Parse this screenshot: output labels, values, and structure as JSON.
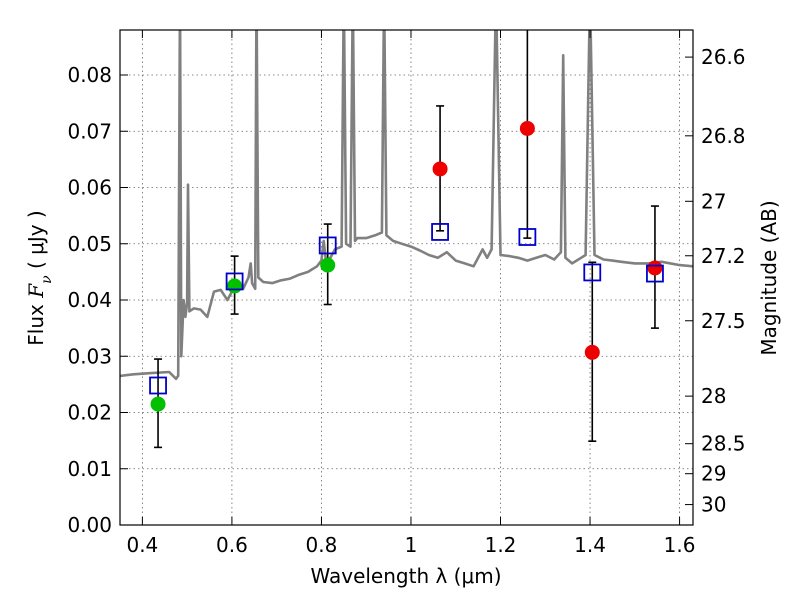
{
  "chart_data": {
    "type": "scatter",
    "title": "",
    "xlabel": "Wavelength  λ (μm)",
    "ylabel": "Flux  F_ν  ( μJy )",
    "ylabel_parts": {
      "prefix": "Flux  ",
      "symbol": "F",
      "subscript": "ν",
      "suffix": "  ( μJy )"
    },
    "y2label": "Magnitude (AB)",
    "xlim": [
      0.35,
      1.63
    ],
    "ylim": [
      0.0,
      0.088
    ],
    "grid": true,
    "x_ticks": [
      0.4,
      0.6,
      0.8,
      1.0,
      1.2,
      1.4,
      1.6
    ],
    "x_tick_labels": [
      "0.4",
      "0.6",
      "0.8",
      "1",
      "1.2",
      "1.4",
      "1.6"
    ],
    "y_ticks": [
      0.0,
      0.01,
      0.02,
      0.03,
      0.04,
      0.05,
      0.06,
      0.07,
      0.08
    ],
    "y_tick_labels": [
      "0.00",
      "0.01",
      "0.02",
      "0.03",
      "0.04",
      "0.05",
      "0.06",
      "0.07",
      "0.08"
    ],
    "y2_ticks": [
      {
        "label": "26.6",
        "mag": 26.6
      },
      {
        "label": "26.8",
        "mag": 26.8
      },
      {
        "label": "27",
        "mag": 27.0
      },
      {
        "label": "27.2",
        "mag": 27.2
      },
      {
        "label": "27.5",
        "mag": 27.5
      },
      {
        "label": "28",
        "mag": 28.0
      },
      {
        "label": "28.5",
        "mag": 28.5
      },
      {
        "label": "29",
        "mag": 29.0
      },
      {
        "label": "30",
        "mag": 30.0
      }
    ],
    "colors": {
      "optical_points": "#00c000",
      "nir_points": "#ee0000",
      "model_photometry": "#0000cc",
      "spectrum": "#808080",
      "errorbar": "#000000"
    },
    "series": [
      {
        "marker": "green-circle",
        "points": [
          {
            "x": 0.435,
            "y": 0.0215,
            "yerr_low": 0.0077,
            "yerr_high": 0.008
          },
          {
            "x": 0.606,
            "y": 0.0425,
            "yerr_low": 0.005,
            "yerr_high": 0.0053
          },
          {
            "x": 0.814,
            "y": 0.0462,
            "yerr_low": 0.007,
            "yerr_high": 0.0073
          }
        ]
      },
      {
        "marker": "red-circle",
        "points": [
          {
            "x": 1.065,
            "y": 0.0633,
            "yerr_low": 0.011,
            "yerr_high": 0.0112
          },
          {
            "x": 1.26,
            "y": 0.0705,
            "yerr_low": 0.0195,
            "yerr_high": 0.02
          },
          {
            "x": 1.405,
            "y": 0.0307,
            "yerr_low": 0.0158,
            "yerr_high": 0.016
          },
          {
            "x": 1.545,
            "y": 0.0457,
            "yerr_low": 0.0107,
            "yerr_high": 0.011
          }
        ]
      },
      {
        "marker": "blue-square",
        "points": [
          {
            "x": 0.435,
            "y": 0.0248
          },
          {
            "x": 0.606,
            "y": 0.0433
          },
          {
            "x": 0.814,
            "y": 0.0497
          },
          {
            "x": 1.065,
            "y": 0.0521
          },
          {
            "x": 1.26,
            "y": 0.0512
          },
          {
            "x": 1.405,
            "y": 0.0449
          },
          {
            "x": 1.545,
            "y": 0.0447
          }
        ]
      },
      {
        "marker": "line",
        "points": [
          [
            0.35,
            0.0265
          ],
          [
            0.38,
            0.0268
          ],
          [
            0.42,
            0.027
          ],
          [
            0.46,
            0.0272
          ],
          [
            0.475,
            0.026
          ],
          [
            0.48,
            0.0265
          ],
          [
            0.484,
            0.095
          ],
          [
            0.487,
            0.03
          ],
          [
            0.492,
            0.04
          ],
          [
            0.496,
            0.037
          ],
          [
            0.5,
            0.0395
          ],
          [
            0.502,
            0.0605
          ],
          [
            0.505,
            0.038
          ],
          [
            0.515,
            0.0385
          ],
          [
            0.53,
            0.0383
          ],
          [
            0.545,
            0.037
          ],
          [
            0.56,
            0.0415
          ],
          [
            0.575,
            0.0418
          ],
          [
            0.59,
            0.04
          ],
          [
            0.6,
            0.0415
          ],
          [
            0.615,
            0.0425
          ],
          [
            0.625,
            0.042
          ],
          [
            0.637,
            0.044
          ],
          [
            0.642,
            0.0465
          ],
          [
            0.645,
            0.043
          ],
          [
            0.652,
            0.042
          ],
          [
            0.655,
            0.095
          ],
          [
            0.659,
            0.044
          ],
          [
            0.67,
            0.0432
          ],
          [
            0.69,
            0.043
          ],
          [
            0.71,
            0.0435
          ],
          [
            0.73,
            0.0438
          ],
          [
            0.75,
            0.0445
          ],
          [
            0.77,
            0.045
          ],
          [
            0.79,
            0.046
          ],
          [
            0.8,
            0.047
          ],
          [
            0.805,
            0.0505
          ],
          [
            0.81,
            0.047
          ],
          [
            0.82,
            0.0475
          ],
          [
            0.83,
            0.049
          ],
          [
            0.845,
            0.0495
          ],
          [
            0.85,
            0.095
          ],
          [
            0.855,
            0.05
          ],
          [
            0.865,
            0.0495
          ],
          [
            0.87,
            0.095
          ],
          [
            0.875,
            0.0505
          ],
          [
            0.88,
            0.051
          ],
          [
            0.9,
            0.051
          ],
          [
            0.92,
            0.0515
          ],
          [
            0.935,
            0.052
          ],
          [
            0.94,
            0.095
          ],
          [
            0.945,
            0.0515
          ],
          [
            0.96,
            0.0505
          ],
          [
            0.98,
            0.05
          ],
          [
            1.0,
            0.0495
          ],
          [
            1.02,
            0.0488
          ],
          [
            1.04,
            0.048
          ],
          [
            1.06,
            0.0475
          ],
          [
            1.08,
            0.0485
          ],
          [
            1.1,
            0.047
          ],
          [
            1.12,
            0.0465
          ],
          [
            1.14,
            0.046
          ],
          [
            1.16,
            0.049
          ],
          [
            1.17,
            0.0475
          ],
          [
            1.18,
            0.049
          ],
          [
            1.19,
            0.095
          ],
          [
            1.2,
            0.048
          ],
          [
            1.22,
            0.0478
          ],
          [
            1.24,
            0.0475
          ],
          [
            1.26,
            0.047
          ],
          [
            1.28,
            0.0475
          ],
          [
            1.3,
            0.048
          ],
          [
            1.32,
            0.0472
          ],
          [
            1.335,
            0.0485
          ],
          [
            1.34,
            0.0835
          ],
          [
            1.345,
            0.0475
          ],
          [
            1.36,
            0.0465
          ],
          [
            1.38,
            0.0475
          ],
          [
            1.39,
            0.048
          ],
          [
            1.4,
            0.095
          ],
          [
            1.41,
            0.048
          ],
          [
            1.43,
            0.0472
          ],
          [
            1.45,
            0.047
          ],
          [
            1.47,
            0.0468
          ],
          [
            1.5,
            0.0465
          ],
          [
            1.53,
            0.0465
          ],
          [
            1.56,
            0.0468
          ],
          [
            1.6,
            0.0462
          ],
          [
            1.63,
            0.046
          ]
        ]
      }
    ]
  }
}
